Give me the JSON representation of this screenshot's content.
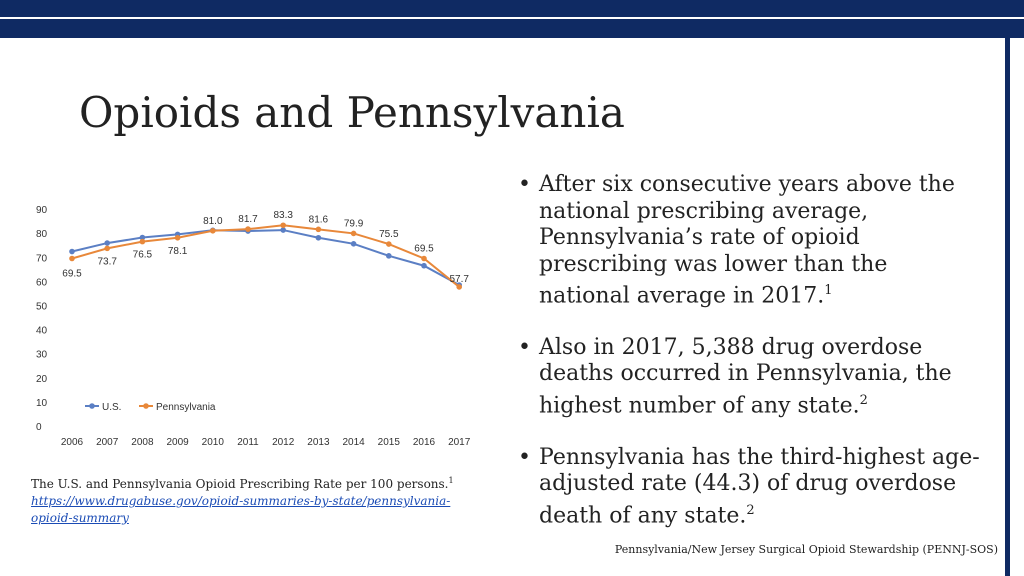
{
  "slide": {
    "title": "Opioids and Pennsylvania",
    "footer": "Pennsylvania/New Jersey Surgical Opioid Stewardship (PENNJ-SOS)"
  },
  "caption": {
    "text": "The U.S. and Pennsylvania Opioid Prescribing Rate per 100 persons.",
    "sup": "1",
    "link": "https://www.drugabuse.gov/opioid-summaries-by-state/pennsylvania-opioid-summary"
  },
  "bullets": [
    {
      "text": "After six consecutive years above the national prescribing average, Pennsylvania’s rate of opioid prescribing was lower than the national average in 2017.",
      "sup": "1"
    },
    {
      "text": "Also in 2017, 5,388 drug overdose deaths occurred in Pennsylvania, the highest number of any state.",
      "sup": "2"
    },
    {
      "text": "Pennsylvania has the third-highest age-adjusted rate (44.3) of drug overdose death of any state.",
      "sup": "2"
    }
  ],
  "bullet_char": "•",
  "colors": {
    "us": "#5b7fc4",
    "pa": "#e8883a",
    "navy": "#0f2a63"
  },
  "chart_data": {
    "type": "line",
    "categories": [
      "2006",
      "2007",
      "2008",
      "2009",
      "2010",
      "2011",
      "2012",
      "2013",
      "2014",
      "2015",
      "2016",
      "2017"
    ],
    "ylim": [
      0,
      90
    ],
    "yticks": [
      0,
      10,
      20,
      30,
      40,
      50,
      60,
      70,
      80,
      90
    ],
    "series": [
      {
        "name": "U.S.",
        "values": [
          72.4,
          75.9,
          78.2,
          79.5,
          81.2,
          80.9,
          81.3,
          78.1,
          75.6,
          70.6,
          66.5,
          58.5
        ]
      },
      {
        "name": "Pennsylvania",
        "values": [
          69.5,
          73.7,
          76.5,
          78.1,
          81.0,
          81.7,
          83.3,
          81.6,
          79.9,
          75.5,
          69.5,
          57.7
        ]
      }
    ],
    "data_labels": [
      "69.5",
      "73.7",
      "76.5",
      "78.1",
      "81.0",
      "81.7",
      "83.3",
      "81.6",
      "79.9",
      "75.5",
      "69.5",
      "57.7"
    ],
    "legend": [
      "U.S.",
      "Pennsylvania"
    ],
    "legend_position": "bottom-left",
    "grid": false
  }
}
